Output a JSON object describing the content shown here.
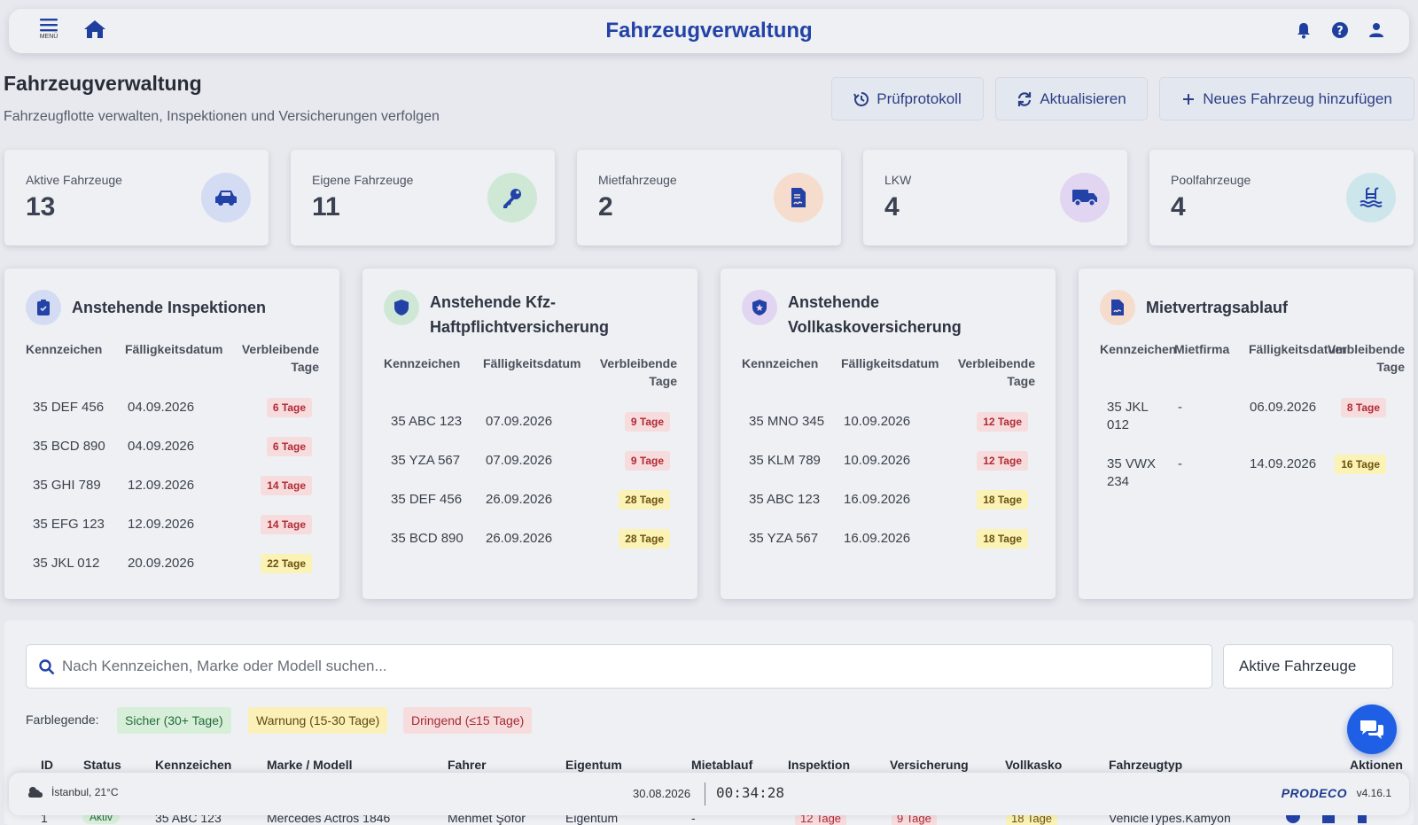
{
  "topbar": {
    "menu_label": "MENÜ",
    "title": "Fahrzeugverwaltung"
  },
  "header": {
    "title": "Fahrzeugverwaltung",
    "subtitle": "Fahrzeugflotte verwalten, Inspektionen und Versicherungen verfolgen",
    "buttons": {
      "audit": "Prüfprotokoll",
      "refresh": "Aktualisieren",
      "add": "Neues Fahrzeug hinzufügen"
    }
  },
  "stats": [
    {
      "label": "Aktive Fahrzeuge",
      "value": "13",
      "icon": "car-icon",
      "color": "#d4dcf4"
    },
    {
      "label": "Eigene Fahrzeuge",
      "value": "11",
      "icon": "key-icon",
      "color": "#cfe8d6"
    },
    {
      "label": "Mietfahrzeuge",
      "value": "2",
      "icon": "contract-icon",
      "color": "#f5dccd"
    },
    {
      "label": "LKW",
      "value": "4",
      "icon": "truck-icon",
      "color": "#e1d5f1"
    },
    {
      "label": "Poolfahrzeuge",
      "value": "4",
      "icon": "pool-icon",
      "color": "#cde6ec"
    }
  ],
  "panels": {
    "inspections": {
      "title": "Anstehende Inspektionen",
      "headers": [
        "Kennzeichen",
        "Fälligkeitsdatum",
        "Verbleibende",
        "Tage"
      ],
      "rows": [
        {
          "plate": "35 DEF 456",
          "date": "04.09.2026",
          "days": "6 Tage",
          "level": "red"
        },
        {
          "plate": "35 BCD 890",
          "date": "04.09.2026",
          "days": "6 Tage",
          "level": "red"
        },
        {
          "plate": "35 GHI 789",
          "date": "12.09.2026",
          "days": "14 Tage",
          "level": "red"
        },
        {
          "plate": "35 EFG 123",
          "date": "12.09.2026",
          "days": "14 Tage",
          "level": "red"
        },
        {
          "plate": "35 JKL 012",
          "date": "20.09.2026",
          "days": "22 Tage",
          "level": "yel"
        }
      ]
    },
    "liability": {
      "title_line1": "Anstehende Kfz-",
      "title_line2": "Haftpflichtversicherung",
      "headers": [
        "Kennzeichen",
        "Fälligkeitsdatum",
        "Verbleibende",
        "Tage"
      ],
      "rows": [
        {
          "plate": "35 ABC 123",
          "date": "07.09.2026",
          "days": "9 Tage",
          "level": "red"
        },
        {
          "plate": "35 YZA 567",
          "date": "07.09.2026",
          "days": "9 Tage",
          "level": "red"
        },
        {
          "plate": "35 DEF 456",
          "date": "26.09.2026",
          "days": "28 Tage",
          "level": "yel"
        },
        {
          "plate": "35 BCD 890",
          "date": "26.09.2026",
          "days": "28 Tage",
          "level": "yel"
        }
      ]
    },
    "comprehensive": {
      "title_line1": "Anstehende",
      "title_line2": "Vollkaskoversicherung",
      "headers": [
        "Kennzeichen",
        "Fälligkeitsdatum",
        "Verbleibende",
        "Tage"
      ],
      "rows": [
        {
          "plate": "35 MNO 345",
          "date": "10.09.2026",
          "days": "12 Tage",
          "level": "red"
        },
        {
          "plate": "35 KLM 789",
          "date": "10.09.2026",
          "days": "12 Tage",
          "level": "red"
        },
        {
          "plate": "35 ABC 123",
          "date": "16.09.2026",
          "days": "18 Tage",
          "level": "yel"
        },
        {
          "plate": "35 YZA 567",
          "date": "16.09.2026",
          "days": "18 Tage",
          "level": "yel"
        }
      ]
    },
    "lease": {
      "title": "Mietvertragsablauf",
      "headers": [
        "Kennzeichen",
        "Mietfirma",
        "Fälligkeitsdatum",
        "Verbleibende",
        "Tage"
      ],
      "rows": [
        {
          "plate_line1": "35 JKL",
          "plate_line2": "012",
          "company": "-",
          "date": "06.09.2026",
          "days": "8 Tage",
          "level": "red"
        },
        {
          "plate_line1": "35 VWX",
          "plate_line2": "234",
          "company": "-",
          "date": "14.09.2026",
          "days": "16 Tage",
          "level": "yel"
        }
      ]
    }
  },
  "search": {
    "placeholder": "Nach Kennzeichen, Marke oder Modell suchen...",
    "filter_value": "Aktive Fahrzeuge"
  },
  "legend": {
    "label": "Farblegende:",
    "items": [
      {
        "label": "Sicher (30+ Tage)",
        "color": "#d7efd9"
      },
      {
        "label": "Warnung (15-30 Tage)",
        "color": "#fbf0b8"
      },
      {
        "label": "Dringend (≤15 Tage)",
        "color": "#f7dcde"
      }
    ]
  },
  "table": {
    "columns": [
      "ID",
      "Status",
      "Kennzeichen",
      "Marke / Modell",
      "Fahrer",
      "Eigentum",
      "Mietablauf",
      "Inspektion",
      "Versicherung",
      "Vollkasko",
      "Fahrzeugtyp",
      "Aktionen"
    ],
    "first_row": {
      "id": "1",
      "status": "Aktiv",
      "plate": "35 ABC 123",
      "model": "Mercedes Actros 1846",
      "driver": "Mehmet Şoför",
      "ownership": "Eigentum",
      "lease": "-",
      "inspection": "12 Tage",
      "insurance": "9 Tage",
      "comprehensive": "18 Tage",
      "type": "VehicleTypes.Kamyon"
    }
  },
  "statusbar": {
    "weather": "İstanbul, 21°C",
    "date": "30.08.2026",
    "time": "00:34:28",
    "brand": "PRODECO",
    "version": "v4.16.1"
  }
}
